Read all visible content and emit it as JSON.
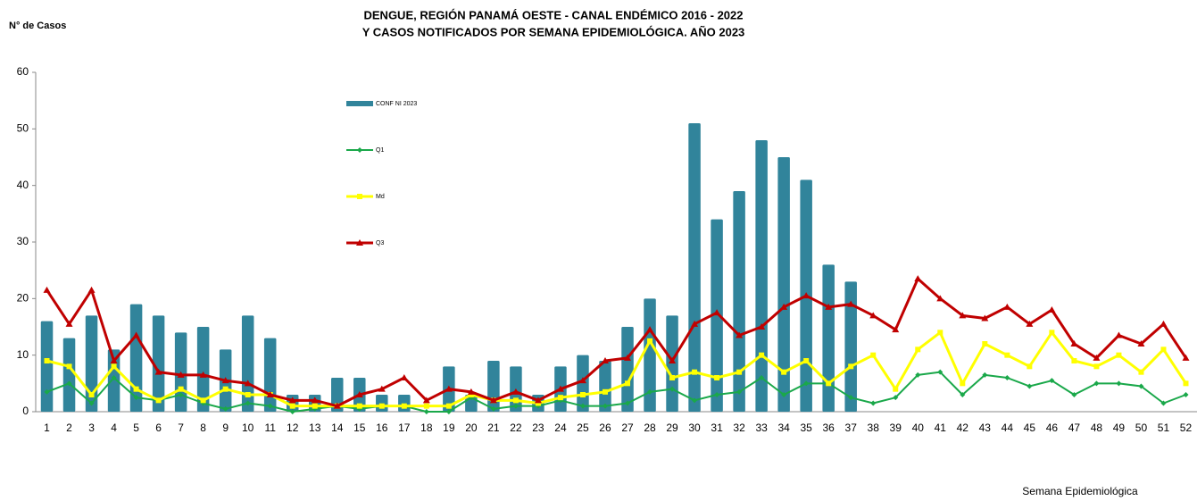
{
  "chart_data": {
    "type": "bar",
    "title": [
      "DENGUE, REGIÓN PANAMÁ OESTE - CANAL ENDÉMICO 2016 - 2022",
      "Y CASOS NOTIFICADOS POR SEMANA EPIDEMIOLÓGICA. AÑO 2023"
    ],
    "y_label": "N° de Casos",
    "x_label": "Semana Epidemiológica",
    "categories": [
      "1",
      "2",
      "3",
      "4",
      "5",
      "6",
      "7",
      "8",
      "9",
      "10",
      "11",
      "12",
      "13",
      "14",
      "15",
      "16",
      "17",
      "18",
      "19",
      "20",
      "21",
      "22",
      "23",
      "24",
      "25",
      "26",
      "27",
      "28",
      "29",
      "30",
      "31",
      "32",
      "33",
      "34",
      "35",
      "36",
      "37",
      "38",
      "39",
      "40",
      "41",
      "42",
      "43",
      "44",
      "45",
      "46",
      "47",
      "48",
      "49",
      "50",
      "51",
      "52"
    ],
    "ylim": [
      0,
      60
    ],
    "yticks": [
      0,
      10,
      20,
      30,
      40,
      50,
      60
    ],
    "grid": false,
    "legend": "upper center",
    "series": [
      {
        "name": "CONF NI 2023",
        "type": "bar",
        "color": "#31849b",
        "values": [
          16,
          13,
          17,
          11,
          19,
          17,
          14,
          15,
          11,
          17,
          13,
          3,
          3,
          6,
          6,
          3,
          3,
          0,
          8,
          3,
          9,
          8,
          3,
          8,
          10,
          9,
          15,
          20,
          17,
          51,
          34,
          39,
          48,
          45,
          41,
          26,
          23,
          null,
          null,
          null,
          null,
          null,
          null,
          null,
          null,
          null,
          null,
          null,
          null,
          null,
          null,
          null
        ]
      },
      {
        "name": "Q1",
        "type": "line",
        "marker": "diamond",
        "color": "#1aa84a",
        "values": [
          3.5,
          5,
          1.5,
          6,
          2.5,
          2,
          3,
          1.5,
          0.5,
          1.5,
          1,
          0,
          0.5,
          1,
          0.5,
          1,
          1,
          0,
          0,
          2.5,
          0.5,
          1,
          1,
          2,
          1,
          1,
          1.5,
          3.5,
          4,
          2,
          3,
          3.5,
          6,
          3,
          5,
          5,
          2.5,
          1.5,
          2.5,
          6.5,
          7,
          3,
          6.5,
          6,
          4.5,
          5.5,
          3,
          5,
          5,
          4.5,
          1.5,
          3
        ]
      },
      {
        "name": "Md",
        "type": "line",
        "marker": "square",
        "color": "#ffff00",
        "values": [
          9,
          8,
          3,
          8,
          4,
          2,
          4,
          2,
          4,
          3,
          3,
          1,
          1,
          1,
          1,
          1,
          1,
          1,
          1,
          3,
          2,
          2,
          1.5,
          2.5,
          3,
          3.5,
          5,
          12.5,
          6,
          7,
          6,
          7,
          10,
          7,
          9,
          5,
          8,
          10,
          4,
          11,
          14,
          5,
          12,
          10,
          8,
          14,
          9,
          8,
          10,
          7,
          11,
          5
        ]
      },
      {
        "name": "Q3",
        "type": "line",
        "marker": "triangle",
        "color": "#c00000",
        "values": [
          21.5,
          15.5,
          21.5,
          9,
          13.5,
          7,
          6.5,
          6.5,
          5.5,
          5,
          3,
          2,
          2,
          1,
          3,
          4,
          6,
          2,
          4,
          3.5,
          2,
          3.5,
          2,
          4,
          5.5,
          9,
          9.5,
          14.5,
          9,
          15.5,
          17.5,
          13.5,
          15,
          18.5,
          20.5,
          18.5,
          19,
          17,
          14.5,
          23.5,
          20,
          17,
          16.5,
          18.5,
          15.5,
          18,
          12,
          9.5,
          13.5,
          12,
          15.5,
          9.5
        ]
      }
    ]
  }
}
